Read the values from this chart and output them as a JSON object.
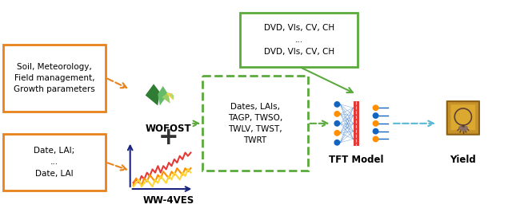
{
  "bg_color": "#ffffff",
  "orange_color": "#E8821A",
  "green_solid_color": "#5AAA3C",
  "green_dashed_color": "#5AAA3C",
  "arrow_orange_color": "#E8821A",
  "arrow_green_color": "#5AAA3C",
  "arrow_blue_color": "#5BB8D4",
  "dark_navy": "#1A237E",
  "box1_text": "Soil, Meteorology,\nField management,\nGrowth parameters",
  "box2_text": "Date, LAI;\n...\nDate, LAI",
  "green_box_text": "DVD, VIs, CV, CH\n...\nDVD, VIs, CV, CH",
  "dashed_box_text": "Dates, LAIs,\nTAGP, TWSO,\nTWLV, TWST,\nTWRT",
  "wofost_label": "WOFOST",
  "ww4ves_label": "WW-4VES",
  "tft_label": "TFT Model",
  "yield_label": "Yield"
}
